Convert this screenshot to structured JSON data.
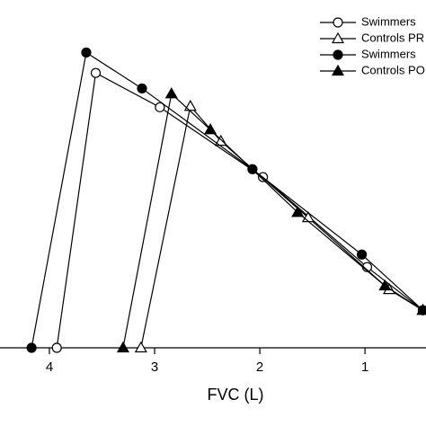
{
  "chart_data": {
    "type": "line",
    "x_label": "FVC (L)",
    "xlim": [
      4.47,
      0.42
    ],
    "xticks": [
      4,
      3,
      2,
      1
    ],
    "ylim": [
      0,
      10.5
    ],
    "legend": "top-right",
    "series": [
      {
        "name": "Swimmers",
        "marker": "open-circle",
        "color": "#000000",
        "x": [
          3.93,
          3.56,
          2.95,
          1.97,
          0.98,
          0.45
        ],
        "values": [
          0,
          8.34,
          7.3,
          5.18,
          2.45,
          1.14
        ]
      },
      {
        "name": "Controls PR",
        "marker": "open-triangle",
        "color": "#000000",
        "x": [
          3.13,
          2.66,
          2.37,
          1.54,
          0.77,
          0.45
        ],
        "values": [
          0,
          7.33,
          6.27,
          3.95,
          1.77,
          1.14
        ]
      },
      {
        "name": "Swimmers",
        "marker": "filled-circle",
        "color": "#000000",
        "x": [
          4.17,
          3.65,
          3.12,
          2.07,
          1.03,
          0.45
        ],
        "values": [
          0,
          8.96,
          7.87,
          5.42,
          2.83,
          1.14
        ]
      },
      {
        "name": "Controls PO",
        "marker": "filled-triangle",
        "color": "#000000",
        "x": [
          3.3,
          2.84,
          2.47,
          1.64,
          0.81,
          0.45
        ],
        "values": [
          0,
          7.71,
          6.62,
          4.11,
          1.88,
          1.14
        ]
      }
    ]
  }
}
